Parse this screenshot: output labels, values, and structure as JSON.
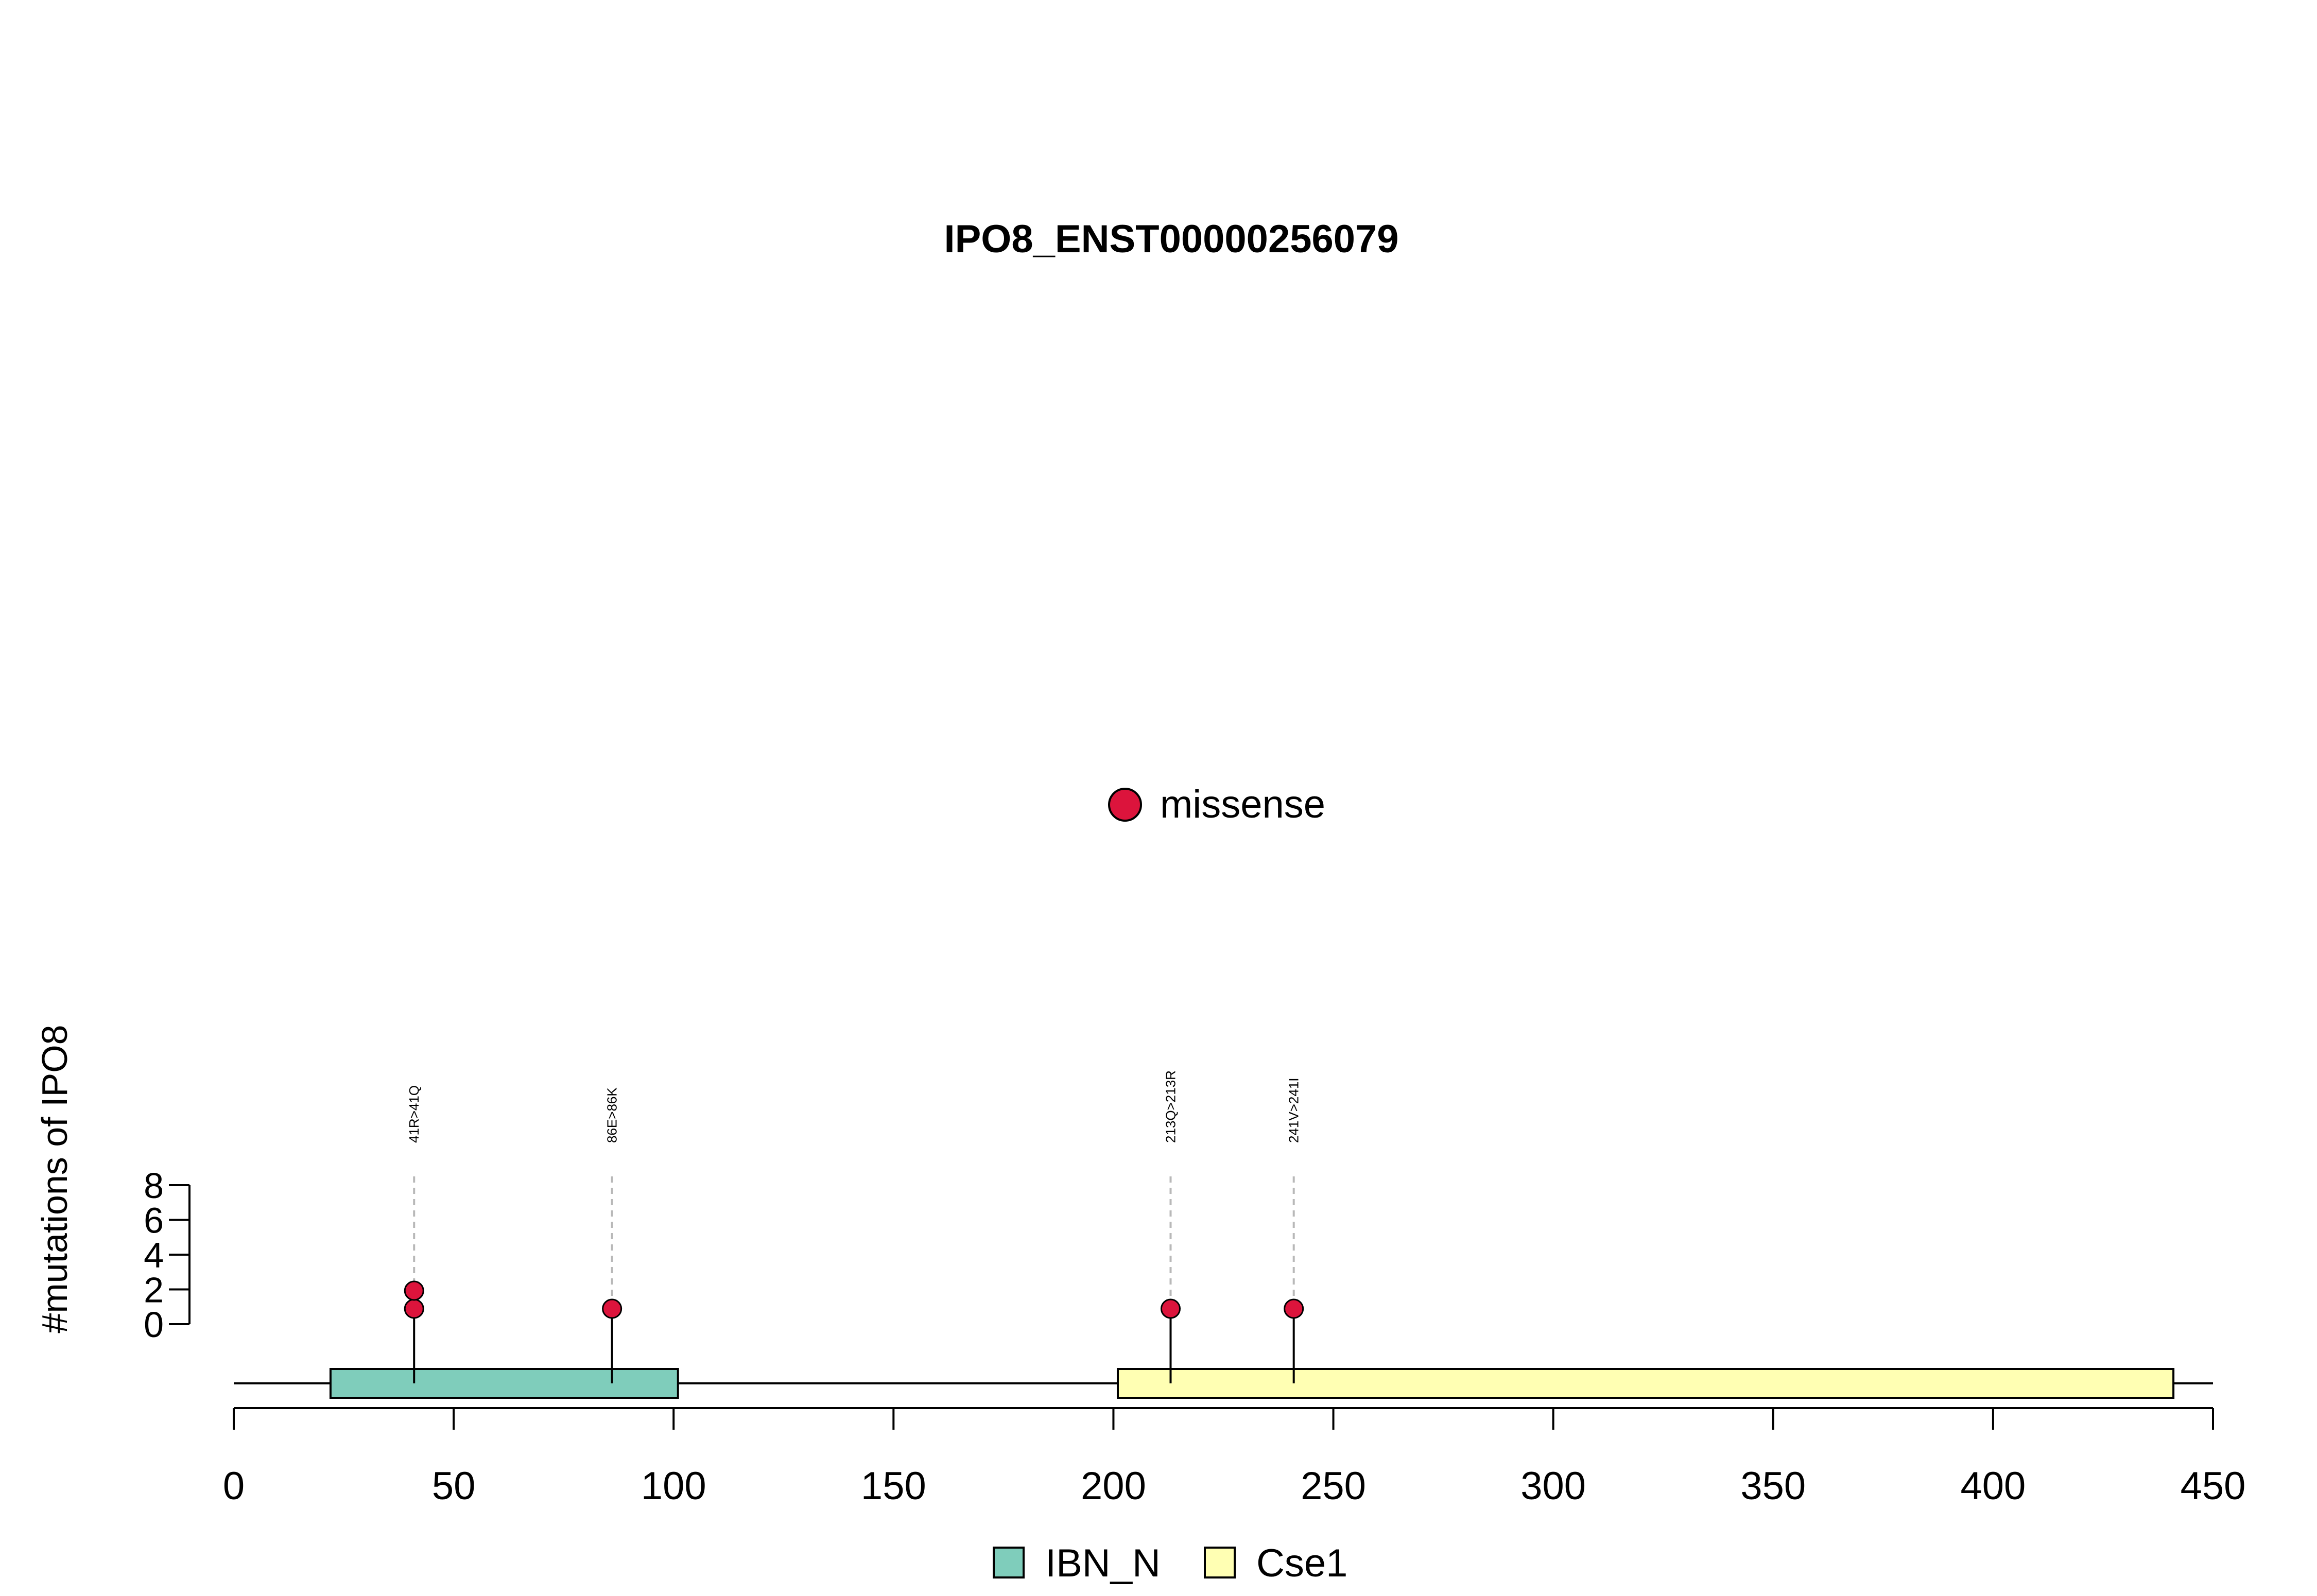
{
  "chart_data": {
    "type": "lollipop",
    "title": "IPO8_ENST00000256079",
    "ylabel": "#mutations of IPO8",
    "xlim": [
      0,
      450
    ],
    "x_ticks": [
      0,
      50,
      100,
      150,
      200,
      250,
      300,
      350,
      400,
      450
    ],
    "ylim": [
      0,
      8
    ],
    "y_ticks": [
      0,
      2,
      4,
      6,
      8
    ],
    "protein_length": 450,
    "domains": [
      {
        "name": "IBN_N",
        "start": 22,
        "end": 101,
        "color": "#7FCDBB"
      },
      {
        "name": "Cse1",
        "start": 201,
        "end": 441,
        "color": "#FFFFB3"
      }
    ],
    "mutations": [
      {
        "position": 41,
        "label": "41R>41Q",
        "count": 2,
        "type": "missense"
      },
      {
        "position": 86,
        "label": "86E>86K",
        "count": 1,
        "type": "missense"
      },
      {
        "position": 213,
        "label": "213Q>213R",
        "count": 1,
        "type": "missense"
      },
      {
        "position": 241,
        "label": "241V>241I",
        "count": 1,
        "type": "missense"
      }
    ],
    "mutation_legend": [
      {
        "label": "missense",
        "color": "#DC143C"
      }
    ],
    "domain_legend": [
      {
        "label": "IBN_N",
        "color": "#7FCDBB"
      },
      {
        "label": "Cse1",
        "color": "#FFFFB3"
      }
    ]
  }
}
